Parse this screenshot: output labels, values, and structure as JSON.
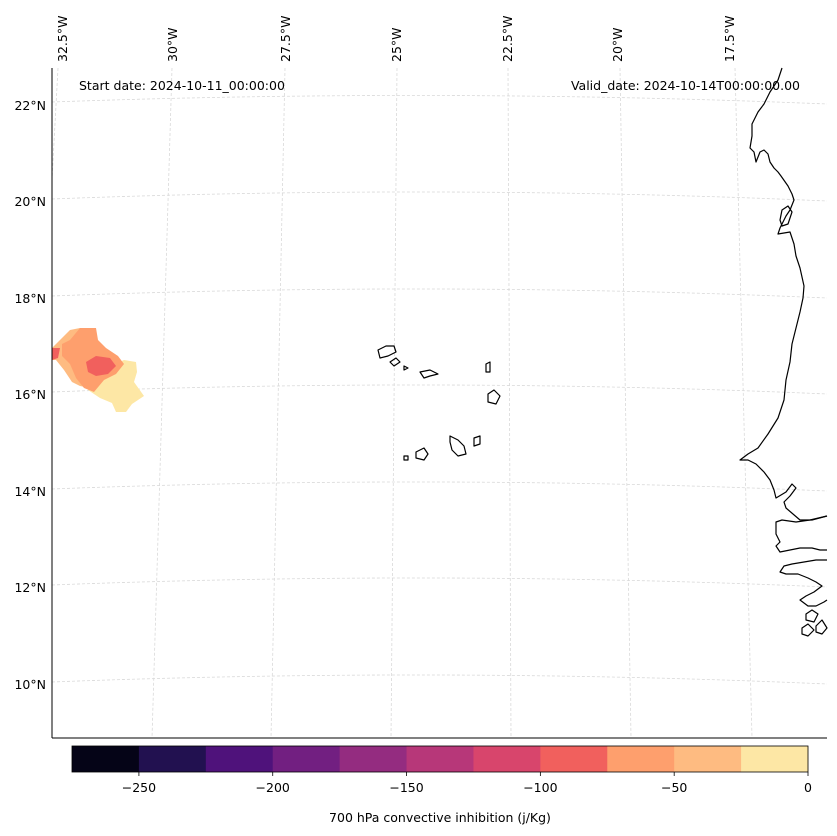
{
  "map": {
    "start_date_label": "Start date: 2024-10-11_00:00:00",
    "valid_date_label": "Valid_date: 2024-10-14T00:00:00.00",
    "lon_labels": [
      "32.5°W",
      "30°W",
      "27.5°W",
      "25°W",
      "22.5°W",
      "20°W",
      "17.5°W"
    ],
    "lat_labels": [
      "22°N",
      "20°N",
      "18°N",
      "16°N",
      "14°N",
      "12°N",
      "10°N"
    ],
    "region": "Cabo Verde and West African coast",
    "field": "700 hPa convective inhibition"
  },
  "colorbar": {
    "label": "700 hPa convective inhibition (j/Kg)",
    "tick_labels": [
      "−250",
      "−200",
      "−150",
      "−100",
      "−50",
      "0"
    ],
    "levels": [
      -275,
      -250,
      -225,
      -200,
      -175,
      -150,
      -125,
      -100,
      -75,
      -50,
      -25,
      0
    ],
    "colors": [
      "#050417",
      "#221150",
      "#4f127b",
      "#721f81",
      "#942c80",
      "#b73779",
      "#d8456c",
      "#f1605d",
      "#fe9f6d",
      "#febb81",
      "#fde7a5"
    ]
  },
  "colors": {
    "coastline": "#000000",
    "grid": "#d9d9d9",
    "frame": "#000000"
  }
}
